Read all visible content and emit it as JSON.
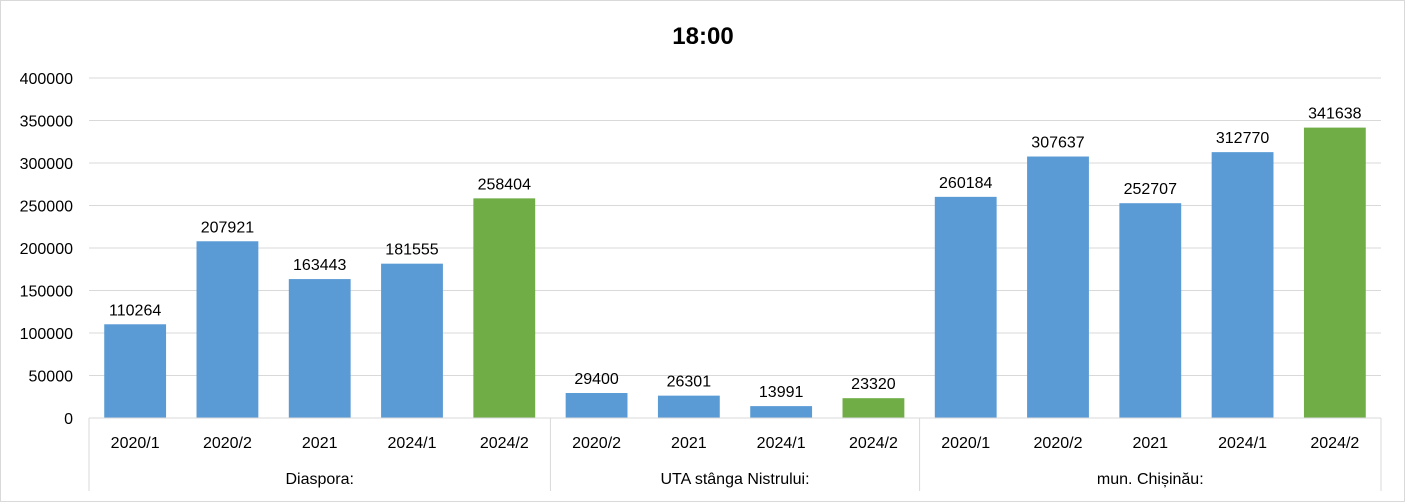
{
  "chart_data": {
    "type": "bar",
    "title": "18:00",
    "xlabel": "",
    "ylabel": "",
    "ylim": [
      0,
      400000
    ],
    "yticks": [
      0,
      50000,
      100000,
      150000,
      200000,
      250000,
      300000,
      350000,
      400000
    ],
    "grid": true,
    "legend": "none",
    "colors": {
      "default": "#5b9bd5",
      "highlight": "#70ad47"
    },
    "groups": [
      {
        "name": "Diaspora:",
        "bars": [
          {
            "category": "2020/1",
            "value": 110264,
            "highlight": false
          },
          {
            "category": "2020/2",
            "value": 207921,
            "highlight": false
          },
          {
            "category": "2021",
            "value": 163443,
            "highlight": false
          },
          {
            "category": "2024/1",
            "value": 181555,
            "highlight": false
          },
          {
            "category": "2024/2",
            "value": 258404,
            "highlight": true
          }
        ]
      },
      {
        "name": "UTA stânga Nistrului:",
        "bars": [
          {
            "category": "2020/2",
            "value": 29400,
            "highlight": false
          },
          {
            "category": "2021",
            "value": 26301,
            "highlight": false
          },
          {
            "category": "2024/1",
            "value": 13991,
            "highlight": false
          },
          {
            "category": "2024/2",
            "value": 23320,
            "highlight": true
          }
        ]
      },
      {
        "name": "mun. Chișinău:",
        "bars": [
          {
            "category": "2020/1",
            "value": 260184,
            "highlight": false
          },
          {
            "category": "2020/2",
            "value": 307637,
            "highlight": false
          },
          {
            "category": "2021",
            "value": 252707,
            "highlight": false
          },
          {
            "category": "2024/1",
            "value": 312770,
            "highlight": false
          },
          {
            "category": "2024/2",
            "value": 341638,
            "highlight": true
          }
        ]
      }
    ]
  }
}
